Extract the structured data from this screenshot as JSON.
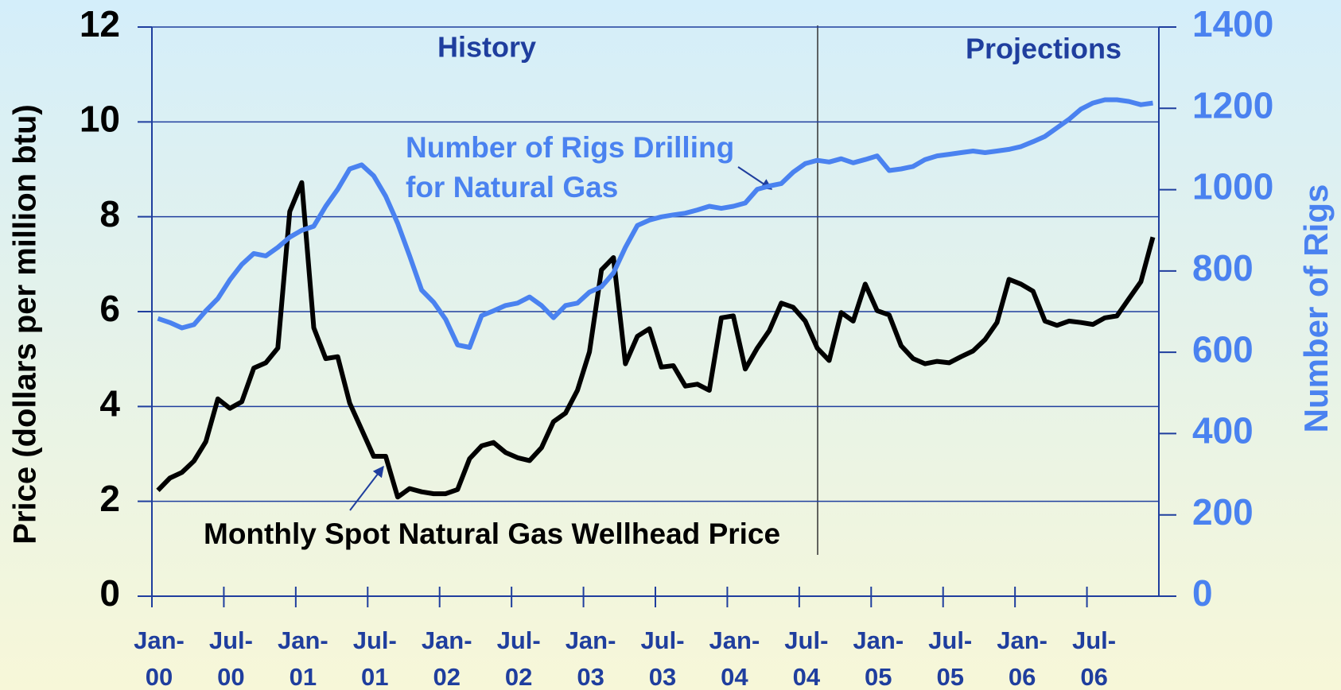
{
  "chart_data": {
    "type": "line",
    "annotations": {
      "history": "History",
      "projections": "Projections",
      "rigs_label": [
        "Number of Rigs Drilling",
        "for Natural Gas"
      ],
      "price_label": "Monthly Spot Natural Gas Wellhead Price"
    },
    "ylabel": "Price (dollars per million btu)",
    "y2label": "Number of Rigs",
    "categories": [
      "Jan-00",
      null,
      null,
      null,
      null,
      null,
      "Jul-00",
      null,
      null,
      null,
      null,
      null,
      "Jan-01",
      null,
      null,
      null,
      null,
      null,
      "Jul-01",
      null,
      null,
      null,
      null,
      null,
      "Jan-02",
      null,
      null,
      null,
      null,
      null,
      "Jul-02",
      null,
      null,
      null,
      null,
      null,
      "Jan-03",
      null,
      null,
      null,
      null,
      null,
      "Jul-03",
      null,
      null,
      null,
      null,
      null,
      "Jan-04",
      null,
      null,
      null,
      null,
      null,
      "Jul-04",
      null,
      null,
      null,
      null,
      null,
      "Jan-05",
      null,
      null,
      null,
      null,
      null,
      "Jul-05",
      null,
      null,
      null,
      null,
      null,
      "Jan-06",
      null,
      null,
      null,
      null,
      null,
      "Jul-06",
      null,
      null,
      null,
      null,
      null
    ],
    "series": [
      {
        "name": "Monthly Spot Natural Gas Wellhead Price",
        "color": "#000000",
        "axis": "y",
        "values": [
          2.23,
          2.49,
          2.61,
          2.85,
          3.26,
          4.16,
          3.96,
          4.1,
          4.81,
          4.92,
          5.23,
          8.11,
          8.72,
          5.66,
          5.01,
          5.05,
          4.07,
          3.51,
          2.95,
          2.95,
          2.09,
          2.27,
          2.2,
          2.16,
          2.16,
          2.25,
          2.9,
          3.17,
          3.24,
          3.03,
          2.92,
          2.86,
          3.13,
          3.68,
          3.86,
          4.34,
          5.15,
          6.88,
          7.14,
          4.9,
          5.48,
          5.64,
          4.83,
          4.86,
          4.43,
          4.47,
          4.34,
          5.87,
          5.91,
          4.79,
          5.23,
          5.6,
          6.18,
          6.09,
          5.8,
          5.23,
          4.97,
          5.98,
          5.8,
          6.58,
          6.02,
          5.93,
          5.28,
          5.01,
          4.9,
          4.95,
          4.92,
          5.05,
          5.17,
          5.41,
          5.77,
          6.68,
          6.58,
          6.43,
          5.8,
          5.71,
          5.8,
          5.77,
          5.73,
          5.87,
          5.91,
          6.27,
          6.63,
          7.57
        ]
      },
      {
        "name": "Number of Rigs Drilling for Natural Gas",
        "color": "#4a82f0",
        "axis": "y2",
        "values": [
          683,
          673,
          660,
          668,
          702,
          732,
          778,
          816,
          843,
          837,
          858,
          883,
          900,
          910,
          959,
          1001,
          1051,
          1061,
          1034,
          984,
          917,
          837,
          753,
          723,
          681,
          618,
          612,
          690,
          702,
          715,
          721,
          736,
          715,
          685,
          715,
          721,
          748,
          761,
          795,
          858,
          912,
          925,
          933,
          938,
          942,
          950,
          959,
          954,
          959,
          967,
          1001,
          1009,
          1015,
          1043,
          1064,
          1072,
          1068,
          1076,
          1066,
          1074,
          1083,
          1047,
          1051,
          1057,
          1074,
          1083,
          1087,
          1091,
          1095,
          1091,
          1095,
          1099,
          1106,
          1118,
          1131,
          1152,
          1173,
          1198,
          1213,
          1221,
          1221,
          1217,
          1209,
          1213
        ]
      }
    ],
    "ylim": [
      0,
      12
    ],
    "yticks": [
      0,
      2,
      4,
      6,
      8,
      10,
      12
    ],
    "y2lim": [
      0,
      1400
    ],
    "y2ticks": [
      0,
      200,
      400,
      600,
      800,
      1000,
      1200,
      1400
    ],
    "grid": true
  }
}
